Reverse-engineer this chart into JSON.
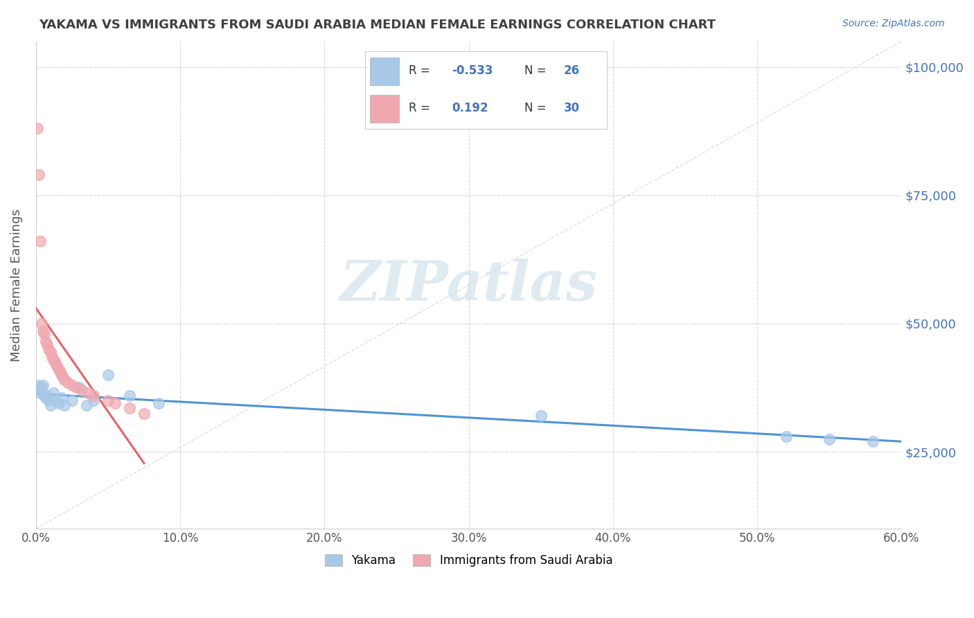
{
  "title": "YAKAMA VS IMMIGRANTS FROM SAUDI ARABIA MEDIAN FEMALE EARNINGS CORRELATION CHART",
  "source_text": "Source: ZipAtlas.com",
  "ylabel": "Median Female Earnings",
  "watermark": "ZIPatlas",
  "yakama_x": [
    0.001,
    0.002,
    0.003,
    0.004,
    0.005,
    0.006,
    0.007,
    0.008,
    0.009,
    0.01,
    0.012,
    0.014,
    0.016,
    0.018,
    0.02,
    0.025,
    0.03,
    0.035,
    0.04,
    0.05,
    0.065,
    0.085,
    0.35,
    0.52,
    0.55,
    0.58
  ],
  "yakama_y": [
    38000,
    37000,
    36500,
    37500,
    38000,
    36000,
    35500,
    36000,
    35000,
    34000,
    36500,
    35000,
    34500,
    35500,
    34000,
    35000,
    37500,
    34000,
    35000,
    40000,
    36000,
    34500,
    32000,
    28000,
    27500,
    27000
  ],
  "saudi_x": [
    0.001,
    0.002,
    0.003,
    0.004,
    0.005,
    0.006,
    0.007,
    0.008,
    0.009,
    0.01,
    0.011,
    0.012,
    0.013,
    0.014,
    0.015,
    0.016,
    0.017,
    0.018,
    0.019,
    0.02,
    0.022,
    0.025,
    0.028,
    0.032,
    0.036,
    0.04,
    0.05,
    0.055,
    0.065,
    0.075
  ],
  "saudi_y": [
    88000,
    79000,
    66000,
    50000,
    48500,
    48000,
    46500,
    46000,
    45000,
    44500,
    43500,
    43000,
    42500,
    42000,
    41500,
    41000,
    40500,
    40000,
    39500,
    39000,
    38500,
    38000,
    37500,
    37000,
    36500,
    36000,
    35000,
    34500,
    33500,
    32500
  ],
  "xmin": 0.0,
  "xmax": 0.6,
  "ymin": 10000,
  "ymax": 105000,
  "yticks": [
    25000,
    50000,
    75000,
    100000
  ],
  "ytick_labels": [
    "$25,000",
    "$50,000",
    "$75,000",
    "$100,000"
  ],
  "xticks": [
    0.0,
    0.1,
    0.2,
    0.3,
    0.4,
    0.5,
    0.6
  ],
  "xtick_labels": [
    "0.0%",
    "10.0%",
    "20.0%",
    "30.0%",
    "40.0%",
    "50.0%",
    "60.0%"
  ],
  "background_color": "#ffffff",
  "grid_color": "#cccccc",
  "diag_line_color": "#cccccc",
  "blue_line_color": "#4d94d5",
  "pink_line_color": "#e8606a",
  "blue_dot_color": "#a8c8e8",
  "pink_dot_color": "#f0a8b0",
  "title_color": "#404040",
  "axis_label_color": "#555555",
  "ytick_color": "#4472c4",
  "xtick_color": "#555555",
  "legend_R_color": "#4472c4",
  "watermark_color": "#ccdde8",
  "R_blue": -0.533,
  "N_blue": 26,
  "R_pink": 0.192,
  "N_pink": 30
}
